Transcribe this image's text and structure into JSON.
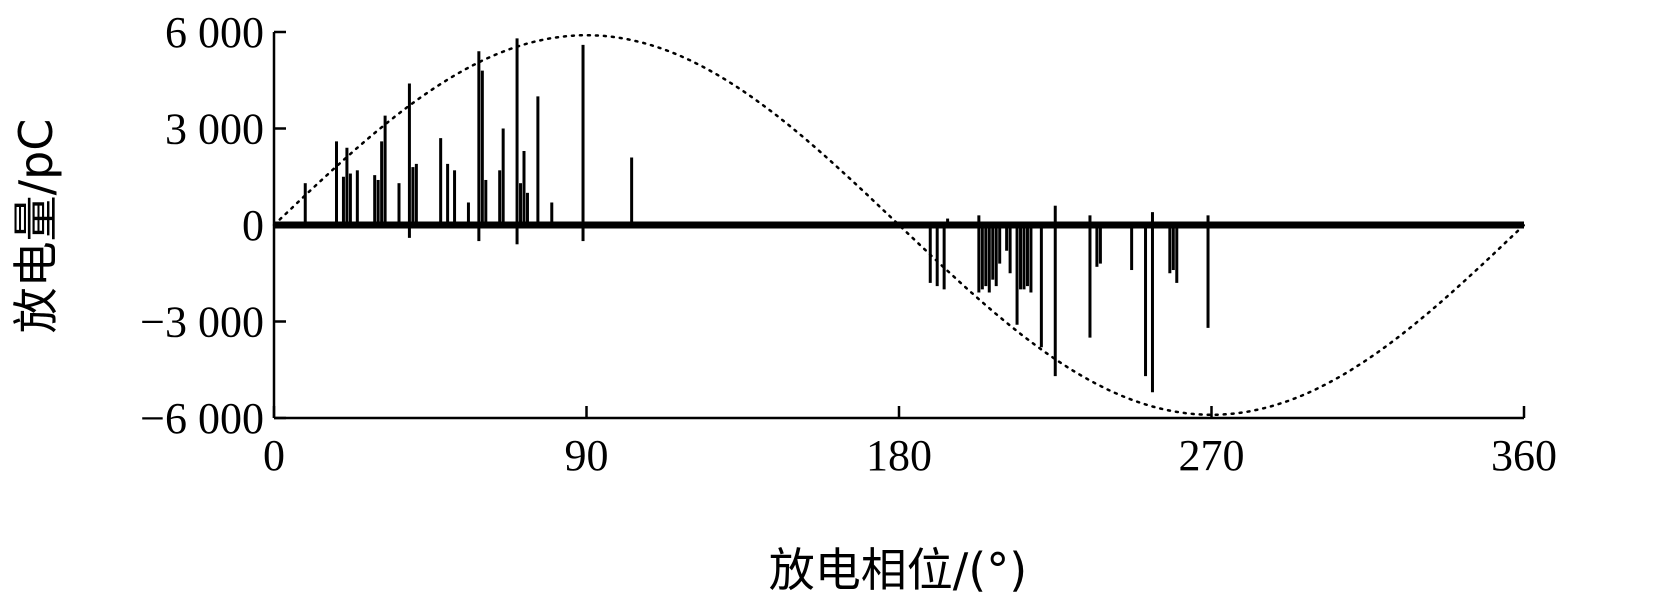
{
  "chart_data": {
    "type": "bar",
    "title": "",
    "xlabel": "放电相位/(°)",
    "ylabel": "放电量/pC",
    "xlim": [
      0,
      360
    ],
    "ylim": [
      -6000,
      6000
    ],
    "x_ticks": [
      0,
      90,
      180,
      270,
      360
    ],
    "x_tick_labels": [
      "0",
      "90",
      "180",
      "270",
      "360"
    ],
    "y_ticks": [
      6000,
      3000,
      0,
      -3000,
      -6000
    ],
    "y_tick_labels": [
      "6 000",
      "3 000",
      "0",
      "−3 000",
      "−6 000"
    ],
    "grid": false,
    "reference_curve": {
      "style": "dotted",
      "description_type": "sinusoid",
      "amplitude": 5900,
      "period_deg": 360
    },
    "pulses": [
      [
        9,
        1300
      ],
      [
        18,
        2600
      ],
      [
        20,
        1500
      ],
      [
        21,
        2400
      ],
      [
        22,
        1600
      ],
      [
        24,
        1700
      ],
      [
        29,
        1550
      ],
      [
        30,
        1400
      ],
      [
        31,
        2600
      ],
      [
        32,
        3400
      ],
      [
        36,
        1300
      ],
      [
        39,
        4400
      ],
      [
        40,
        1800
      ],
      [
        41,
        1900
      ],
      [
        48,
        2700
      ],
      [
        50,
        1900
      ],
      [
        52,
        1700
      ],
      [
        56,
        700
      ],
      [
        59,
        5400
      ],
      [
        60,
        4800
      ],
      [
        61,
        1400
      ],
      [
        65,
        1700
      ],
      [
        66,
        3000
      ],
      [
        70,
        5800
      ],
      [
        71,
        1300
      ],
      [
        72,
        2300
      ],
      [
        73,
        1000
      ],
      [
        76,
        4000
      ],
      [
        80,
        700
      ],
      [
        89,
        5600
      ],
      [
        103,
        2100
      ],
      [
        59,
        -500
      ],
      [
        70,
        -600
      ],
      [
        39,
        -400
      ],
      [
        89,
        -500
      ],
      [
        189,
        -1800
      ],
      [
        191,
        -1900
      ],
      [
        193,
        -2000
      ],
      [
        203,
        -2100
      ],
      [
        204,
        -2000
      ],
      [
        205,
        -1900
      ],
      [
        206,
        -2100
      ],
      [
        207,
        -1700
      ],
      [
        208,
        -1900
      ],
      [
        209,
        -1200
      ],
      [
        211,
        -800
      ],
      [
        212,
        -1500
      ],
      [
        214,
        -3100
      ],
      [
        215,
        -2000
      ],
      [
        216,
        -2000
      ],
      [
        217,
        -1900
      ],
      [
        218,
        -2100
      ],
      [
        221,
        -3800
      ],
      [
        225,
        -4700
      ],
      [
        235,
        -3500
      ],
      [
        237,
        -1300
      ],
      [
        238,
        -1200
      ],
      [
        247,
        -1400
      ],
      [
        251,
        -4700
      ],
      [
        253,
        -5200
      ],
      [
        258,
        -1500
      ],
      [
        259,
        -1400
      ],
      [
        260,
        -1800
      ],
      [
        269,
        -3200
      ],
      [
        194,
        200
      ],
      [
        203,
        300
      ],
      [
        225,
        600
      ],
      [
        235,
        300
      ],
      [
        253,
        400
      ],
      [
        269,
        300
      ]
    ]
  }
}
